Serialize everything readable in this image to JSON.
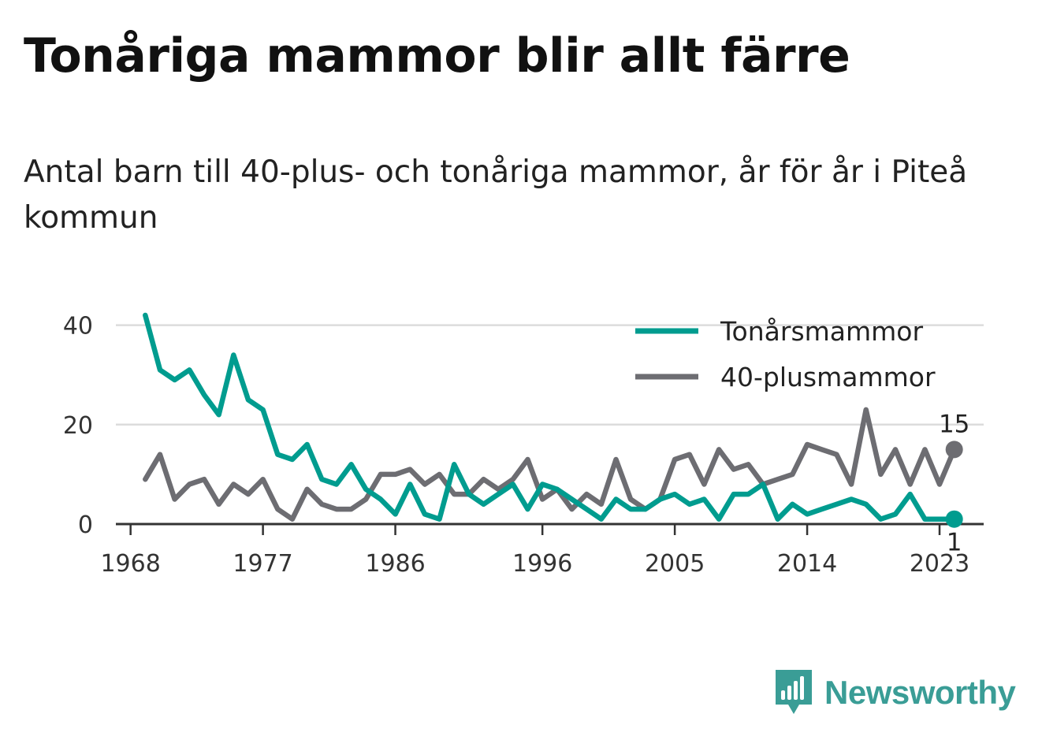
{
  "title": "Tonåriga mammor blir allt färre",
  "subtitle": "Antal barn till 40-plus- och tonåriga mammor, år för år i Piteå kommun",
  "brand": "Newsworthy",
  "colors": {
    "teen": "#009c8f",
    "forty": "#6d6d72",
    "grid": "#dcdcdc",
    "axis": "#333333"
  },
  "chart_data": {
    "type": "line",
    "x": [
      1969,
      1970,
      1971,
      1972,
      1973,
      1974,
      1975,
      1976,
      1977,
      1978,
      1979,
      1980,
      1981,
      1982,
      1983,
      1984,
      1985,
      1986,
      1987,
      1988,
      1989,
      1990,
      1991,
      1992,
      1993,
      1994,
      1995,
      1996,
      1997,
      1998,
      1999,
      2000,
      2001,
      2002,
      2003,
      2004,
      2005,
      2006,
      2007,
      2008,
      2009,
      2010,
      2011,
      2012,
      2013,
      2014,
      2015,
      2016,
      2017,
      2018,
      2019,
      2020,
      2021,
      2022,
      2023,
      2024
    ],
    "series": [
      {
        "name": "Tonårsmammor",
        "values": [
          42,
          31,
          29,
          31,
          26,
          22,
          34,
          25,
          23,
          14,
          13,
          16,
          9,
          8,
          12,
          7,
          5,
          2,
          8,
          2,
          1,
          12,
          6,
          4,
          6,
          8,
          3,
          8,
          7,
          5,
          3,
          1,
          5,
          3,
          3,
          5,
          6,
          4,
          5,
          1,
          6,
          6,
          8,
          1,
          4,
          2,
          3,
          4,
          5,
          4,
          1,
          2,
          6,
          1,
          1,
          1
        ]
      },
      {
        "name": "40-plusmammor",
        "values": [
          9,
          14,
          5,
          8,
          9,
          4,
          8,
          6,
          9,
          3,
          1,
          7,
          4,
          3,
          3,
          5,
          10,
          10,
          11,
          8,
          10,
          6,
          6,
          9,
          7,
          9,
          13,
          5,
          7,
          3,
          6,
          4,
          13,
          5,
          3,
          5,
          13,
          14,
          8,
          15,
          11,
          12,
          8,
          9,
          10,
          16,
          15,
          14,
          8,
          23,
          10,
          15,
          8,
          15,
          8,
          15
        ]
      }
    ],
    "x_ticks": [
      "1968",
      "1977",
      "1986",
      "1996",
      "2005",
      "2014",
      "2023"
    ],
    "y_ticks": [
      "0",
      "20",
      "40"
    ],
    "ylim": [
      0,
      42
    ],
    "xlim": [
      1967,
      2026
    ],
    "legend_position": "top-right",
    "grid": true,
    "end_labels": {
      "Tonårsmammor": "1",
      "40-plusmammor": "15"
    }
  }
}
